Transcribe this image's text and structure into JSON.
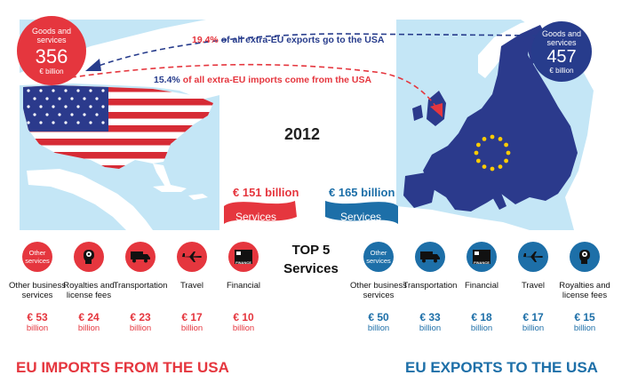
{
  "header": {
    "year": "2012",
    "exports_note": {
      "highlight": "19.4%",
      "rest": " of all extra-EU exports go to the USA"
    },
    "imports_note": {
      "highlight": "15.4%",
      "rest": " of all extra-EU imports come from the USA"
    }
  },
  "usa_circle": {
    "label": "Goods and services",
    "value": "356",
    "unit": "€ billion"
  },
  "eu_circle": {
    "label": "Goods and services",
    "value": "457",
    "unit": "€ billion"
  },
  "imports_banner": {
    "value": "€ 151 billion",
    "label": "Services"
  },
  "exports_banner": {
    "value": "€ 165 billion",
    "label": "Services"
  },
  "top5": {
    "line1": "TOP 5",
    "line2": "Services"
  },
  "imports_services": [
    {
      "icon_text": "Other services",
      "icon": "other-services-icon",
      "name": "Other business services",
      "value": "€ 53",
      "unit": "billion"
    },
    {
      "icon_text": "",
      "icon": "royalties-brain-icon",
      "name": "Royalties and license fees",
      "value": "€ 24",
      "unit": "billion"
    },
    {
      "icon_text": "",
      "icon": "truck-icon",
      "name": "Transportation",
      "value": "€ 23",
      "unit": "billion"
    },
    {
      "icon_text": "",
      "icon": "plane-icon",
      "name": "Travel",
      "value": "€ 17",
      "unit": "billion"
    },
    {
      "icon_text": "FINANCE",
      "icon": "finance-icon",
      "name": "Financial",
      "value": "€ 10",
      "unit": "billion"
    }
  ],
  "exports_services": [
    {
      "icon_text": "Other services",
      "icon": "other-services-icon",
      "name": "Other business services",
      "value": "€ 50",
      "unit": "billion"
    },
    {
      "icon_text": "",
      "icon": "truck-icon",
      "name": "Transportation",
      "value": "€ 33",
      "unit": "billion"
    },
    {
      "icon_text": "FINANCE",
      "icon": "finance-icon",
      "name": "Financial",
      "value": "€ 18",
      "unit": "billion"
    },
    {
      "icon_text": "",
      "icon": "plane-icon",
      "name": "Travel",
      "value": "€ 17",
      "unit": "billion"
    },
    {
      "icon_text": "",
      "icon": "royalties-brain-icon",
      "name": "Royalties and license fees",
      "value": "€ 15",
      "unit": "billion"
    }
  ],
  "footer": {
    "imports": "EU IMPORTS FROM THE USA",
    "exports": "EU EXPORTS TO THE USA"
  },
  "colors": {
    "red": "#e5363e",
    "navy": "#273c8c",
    "blue": "#1d6fa8",
    "sea": "#c4e6f6"
  }
}
